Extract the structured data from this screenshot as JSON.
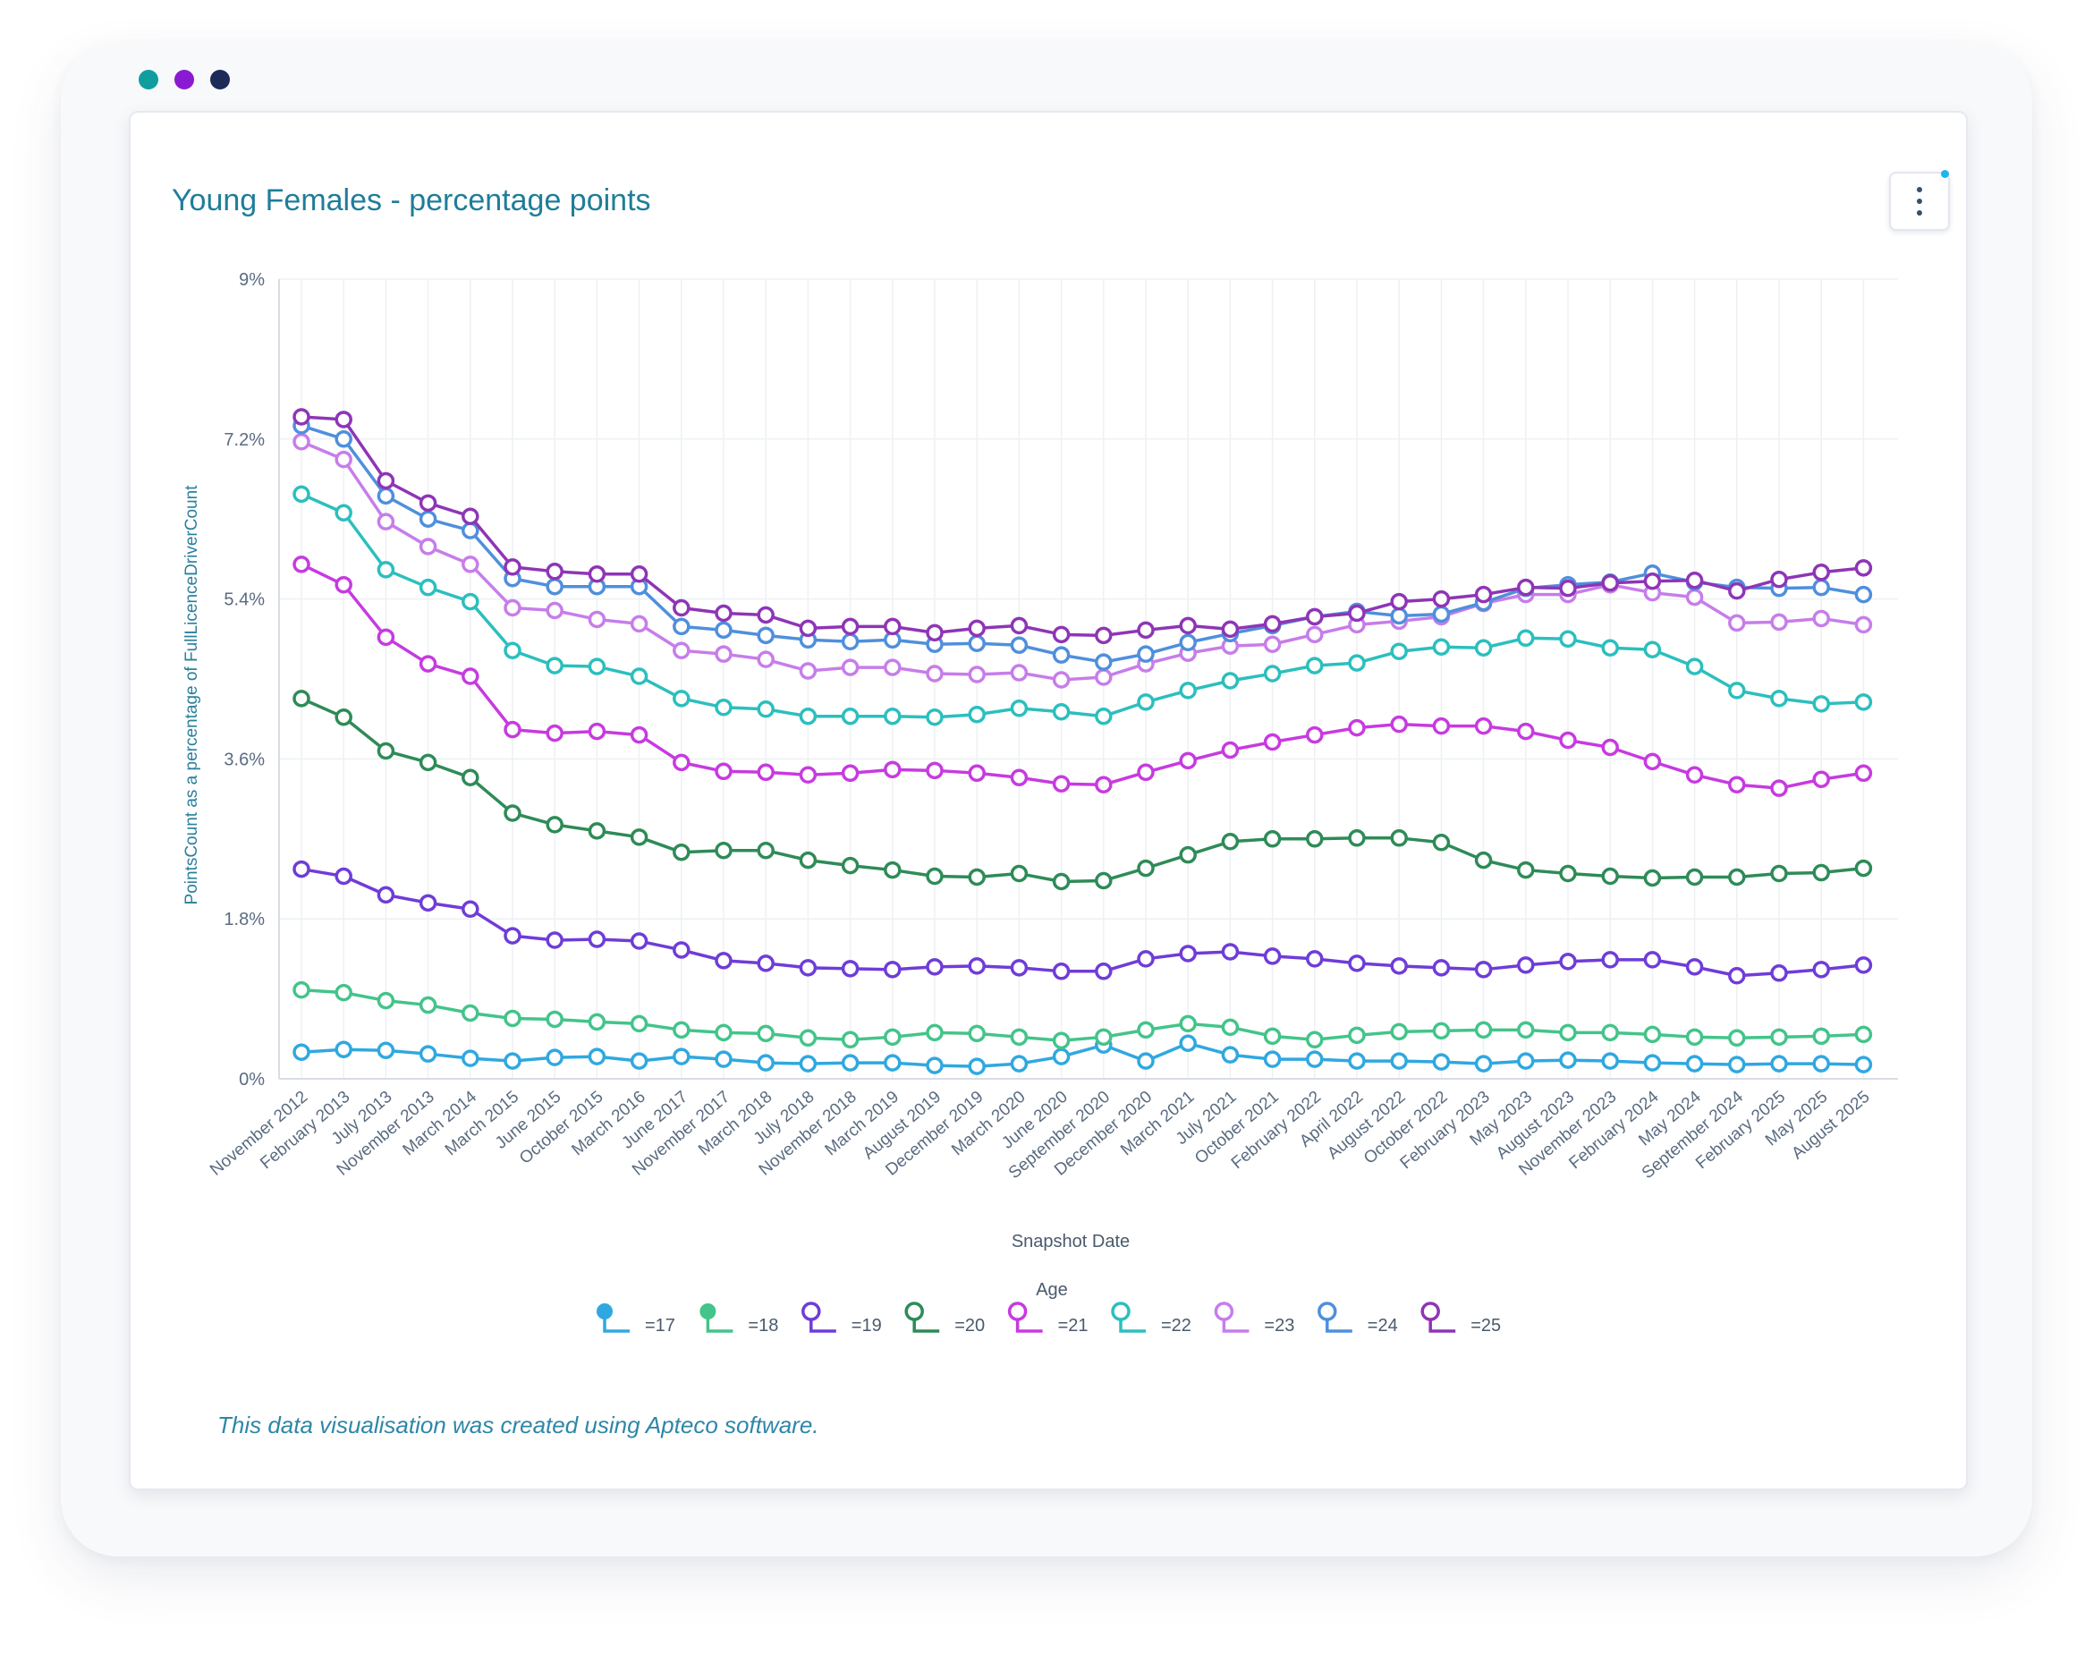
{
  "window": {
    "dots": [
      {
        "name": "teal-dot",
        "color": "#0f9ea0"
      },
      {
        "name": "purple-dot",
        "color": "#8a1ad1"
      },
      {
        "name": "navy-dot",
        "color": "#1e2a57"
      }
    ]
  },
  "card": {
    "title": "Young Females - percentage points",
    "menu_icon": "kebab-menu-icon",
    "footer": "This data visualisation was created using Apteco software."
  },
  "chart_data": {
    "type": "line",
    "title": "Young Females - percentage points",
    "xlabel": "Snapshot Date",
    "ylabel": "PointsCount as a percentage of FullLicenceDriverCount",
    "ylim": [
      0,
      9
    ],
    "y_ticks": [
      "0%",
      "1.8%",
      "3.6%",
      "5.4%",
      "7.2%",
      "9%"
    ],
    "y_tick_values": [
      0,
      1.8,
      3.6,
      5.4,
      7.2,
      9
    ],
    "grid": true,
    "legend_title": "Age",
    "legend_position": "bottom",
    "categories": [
      "November 2012",
      "February 2013",
      "July 2013",
      "November 2013",
      "March 2014",
      "March 2015",
      "June 2015",
      "October 2015",
      "March 2016",
      "June 2017",
      "November 2017",
      "March 2018",
      "July 2018",
      "November 2018",
      "March 2019",
      "August 2019",
      "December 2019",
      "March 2020",
      "June 2020",
      "September 2020",
      "December 2020",
      "March 2021",
      "July 2021",
      "October 2021",
      "February 2022",
      "April 2022",
      "August 2022",
      "October 2022",
      "February 2023",
      "May 2023",
      "August 2023",
      "November 2023",
      "February 2024",
      "May 2024",
      "September 2024",
      "February 2025",
      "May 2025",
      "August 2025"
    ],
    "series": [
      {
        "name": "=17",
        "color": "#2fa8e0",
        "values": [
          0.3,
          0.33,
          0.32,
          0.28,
          0.23,
          0.2,
          0.24,
          0.25,
          0.2,
          0.25,
          0.22,
          0.18,
          0.17,
          0.18,
          0.18,
          0.15,
          0.14,
          0.17,
          0.25,
          0.38,
          0.2,
          0.4,
          0.27,
          0.22,
          0.22,
          0.2,
          0.2,
          0.19,
          0.17,
          0.2,
          0.21,
          0.2,
          0.18,
          0.17,
          0.16,
          0.17,
          0.17,
          0.16
        ]
      },
      {
        "name": "=18",
        "color": "#43c48a",
        "values": [
          1.0,
          0.97,
          0.88,
          0.83,
          0.74,
          0.68,
          0.67,
          0.64,
          0.62,
          0.55,
          0.52,
          0.51,
          0.46,
          0.44,
          0.47,
          0.52,
          0.51,
          0.47,
          0.43,
          0.47,
          0.55,
          0.62,
          0.58,
          0.48,
          0.44,
          0.49,
          0.53,
          0.54,
          0.55,
          0.55,
          0.52,
          0.52,
          0.5,
          0.47,
          0.46,
          0.47,
          0.48,
          0.5
        ]
      },
      {
        "name": "=19",
        "color": "#6f3cd8",
        "values": [
          2.36,
          2.28,
          2.07,
          1.98,
          1.91,
          1.61,
          1.56,
          1.57,
          1.55,
          1.45,
          1.33,
          1.3,
          1.25,
          1.24,
          1.23,
          1.26,
          1.27,
          1.25,
          1.21,
          1.21,
          1.35,
          1.41,
          1.43,
          1.38,
          1.35,
          1.3,
          1.27,
          1.25,
          1.23,
          1.28,
          1.32,
          1.34,
          1.34,
          1.26,
          1.16,
          1.19,
          1.23,
          1.28
        ]
      },
      {
        "name": "=20",
        "color": "#2e8b57",
        "values": [
          4.28,
          4.07,
          3.69,
          3.56,
          3.39,
          2.99,
          2.86,
          2.79,
          2.72,
          2.55,
          2.57,
          2.57,
          2.46,
          2.4,
          2.35,
          2.28,
          2.27,
          2.31,
          2.22,
          2.23,
          2.37,
          2.52,
          2.67,
          2.7,
          2.7,
          2.71,
          2.71,
          2.66,
          2.46,
          2.35,
          2.31,
          2.28,
          2.26,
          2.27,
          2.27,
          2.31,
          2.32,
          2.37
        ]
      },
      {
        "name": "=21",
        "color": "#c73ae0",
        "values": [
          5.79,
          5.56,
          4.97,
          4.67,
          4.53,
          3.93,
          3.89,
          3.91,
          3.87,
          3.56,
          3.46,
          3.45,
          3.42,
          3.44,
          3.48,
          3.47,
          3.44,
          3.39,
          3.32,
          3.31,
          3.45,
          3.58,
          3.7,
          3.79,
          3.87,
          3.95,
          3.99,
          3.97,
          3.97,
          3.91,
          3.81,
          3.73,
          3.57,
          3.42,
          3.31,
          3.27,
          3.37,
          3.44
        ]
      },
      {
        "name": "=22",
        "color": "#2bbfbe",
        "values": [
          6.58,
          6.37,
          5.73,
          5.53,
          5.37,
          4.82,
          4.65,
          4.64,
          4.53,
          4.28,
          4.18,
          4.16,
          4.08,
          4.08,
          4.08,
          4.07,
          4.1,
          4.17,
          4.13,
          4.08,
          4.24,
          4.37,
          4.48,
          4.56,
          4.65,
          4.68,
          4.81,
          4.86,
          4.85,
          4.96,
          4.95,
          4.85,
          4.83,
          4.64,
          4.37,
          4.28,
          4.22,
          4.24
        ]
      },
      {
        "name": "=23",
        "color": "#c77dea",
        "values": [
          7.17,
          6.97,
          6.27,
          5.99,
          5.79,
          5.3,
          5.27,
          5.17,
          5.12,
          4.82,
          4.78,
          4.72,
          4.59,
          4.63,
          4.63,
          4.56,
          4.55,
          4.57,
          4.49,
          4.52,
          4.67,
          4.79,
          4.87,
          4.89,
          5.0,
          5.11,
          5.15,
          5.2,
          5.35,
          5.45,
          5.45,
          5.56,
          5.47,
          5.42,
          5.13,
          5.14,
          5.18,
          5.11
        ]
      },
      {
        "name": "=24",
        "color": "#4f8fdc",
        "values": [
          7.35,
          7.2,
          6.56,
          6.3,
          6.17,
          5.63,
          5.54,
          5.54,
          5.54,
          5.09,
          5.05,
          4.99,
          4.94,
          4.92,
          4.94,
          4.89,
          4.9,
          4.88,
          4.77,
          4.69,
          4.78,
          4.91,
          5.01,
          5.1,
          5.2,
          5.26,
          5.21,
          5.23,
          5.36,
          5.52,
          5.56,
          5.59,
          5.69,
          5.59,
          5.53,
          5.52,
          5.53,
          5.45
        ]
      },
      {
        "name": "=25",
        "color": "#8e35b6",
        "values": [
          7.45,
          7.42,
          6.73,
          6.48,
          6.33,
          5.76,
          5.71,
          5.68,
          5.68,
          5.3,
          5.24,
          5.22,
          5.07,
          5.09,
          5.09,
          5.02,
          5.07,
          5.1,
          5.0,
          4.99,
          5.05,
          5.1,
          5.06,
          5.12,
          5.2,
          5.24,
          5.37,
          5.4,
          5.45,
          5.53,
          5.52,
          5.58,
          5.6,
          5.61,
          5.49,
          5.62,
          5.7,
          5.75
        ]
      }
    ]
  }
}
